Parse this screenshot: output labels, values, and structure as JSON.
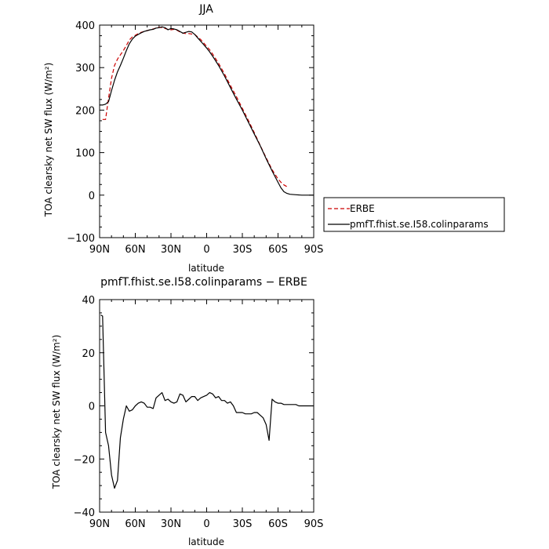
{
  "chart_data": [
    {
      "type": "line",
      "title": "JJA",
      "xlabel": "latitude",
      "ylabel": "TOA clearsky net SW flux (W/m²)",
      "xlim": [
        90,
        -90
      ],
      "ylim": [
        -100,
        400
      ],
      "x_tick_values": [
        90,
        60,
        30,
        0,
        -30,
        -60,
        -90
      ],
      "x_tick_labels": [
        "90N",
        "60N",
        "30N",
        "0",
        "30S",
        "60S",
        "90S"
      ],
      "y_tick_values": [
        -100,
        0,
        100,
        200,
        300,
        400
      ],
      "y_tick_labels": [
        "−100",
        "0",
        "100",
        "200",
        "300",
        "400"
      ],
      "legend_position": "right",
      "series": [
        {
          "name": "ERBE",
          "color": "#cc0000",
          "style": "dashed",
          "x": [
            87.5,
            85,
            82.5,
            80,
            77.5,
            75,
            72.5,
            70,
            67.5,
            65,
            62.5,
            60,
            57.5,
            55,
            52.5,
            50,
            47.5,
            45,
            42.5,
            40,
            37.5,
            35,
            32.5,
            30,
            27.5,
            25,
            22.5,
            20,
            17.5,
            15,
            12.5,
            10,
            7.5,
            5,
            2.5,
            0,
            -2.5,
            -5,
            -10,
            -15,
            -20,
            -25,
            -30,
            -35,
            -40,
            -45,
            -50,
            -55,
            -60,
            -62.5,
            -65,
            -67.5
          ],
          "y": [
            178,
            178,
            228,
            275,
            305,
            320,
            330,
            340,
            352,
            365,
            372,
            376,
            380,
            383,
            385,
            387,
            389,
            391,
            393,
            395,
            394,
            392,
            390,
            389,
            390,
            388,
            384,
            381,
            380,
            380,
            379,
            378,
            372,
            366,
            358,
            350,
            342,
            332,
            310,
            285,
            258,
            232,
            204,
            176,
            147,
            117,
            88,
            60,
            38,
            30,
            24,
            20
          ]
        },
        {
          "name": "pmfT.fhist.se.I58.colinparams",
          "color": "#000000",
          "style": "solid",
          "x": [
            90,
            87.5,
            85,
            82.5,
            80,
            77.5,
            75,
            72.5,
            70,
            67.5,
            65,
            62.5,
            60,
            57.5,
            55,
            52.5,
            50,
            47.5,
            45,
            42.5,
            40,
            37.5,
            35,
            32.5,
            30,
            27.5,
            25,
            22.5,
            20,
            17.5,
            15,
            12.5,
            10,
            7.5,
            5,
            2.5,
            0,
            -2.5,
            -5,
            -10,
            -15,
            -20,
            -25,
            -30,
            -35,
            -40,
            -45,
            -50,
            -55,
            -60,
            -62.5,
            -65,
            -67.5,
            -70,
            -75,
            -80,
            -85,
            -90
          ],
          "y": [
            212,
            212,
            214,
            220,
            246,
            270,
            290,
            305,
            322,
            340,
            356,
            367,
            374,
            378,
            382,
            385,
            387,
            389,
            390,
            393,
            394,
            396,
            394,
            389,
            392,
            391,
            389,
            385,
            381,
            383,
            385,
            384,
            378,
            370,
            362,
            354,
            346,
            337,
            327,
            305,
            280,
            253,
            226,
            200,
            172,
            144,
            116,
            86,
            57,
            30,
            17,
            8,
            4,
            2,
            1,
            0,
            0,
            0
          ]
        }
      ]
    },
    {
      "type": "line",
      "title": "pmfT.fhist.se.I58.colinparams − ERBE",
      "xlabel": "latitude",
      "ylabel": "TOA clearsky net SW flux (W/m²)",
      "xlim": [
        90,
        -90
      ],
      "ylim": [
        -40,
        40
      ],
      "x_tick_values": [
        90,
        60,
        30,
        0,
        -30,
        -60,
        -90
      ],
      "x_tick_labels": [
        "90N",
        "60N",
        "30N",
        "0",
        "30S",
        "60S",
        "90S"
      ],
      "y_tick_values": [
        -40,
        -20,
        0,
        20,
        40
      ],
      "y_tick_labels": [
        "−40",
        "−20",
        "0",
        "20",
        "40"
      ],
      "series": [
        {
          "name": "pmfT.fhist.se.I58.colinparams − ERBE",
          "color": "#000000",
          "style": "solid",
          "x": [
            89,
            87.5,
            85,
            82.5,
            80,
            77.5,
            75,
            72.5,
            70,
            67.5,
            65,
            62.5,
            60,
            57.5,
            55,
            52.5,
            50,
            47.5,
            45,
            42.5,
            40,
            37.5,
            35,
            32.5,
            30,
            27.5,
            25,
            22.5,
            20,
            17.5,
            15,
            12.5,
            10,
            7.5,
            5,
            2.5,
            0,
            -2.5,
            -5,
            -7.5,
            -10,
            -12.5,
            -15,
            -17.5,
            -20,
            -22.5,
            -25,
            -27.5,
            -30,
            -32.5,
            -35,
            -37.5,
            -40,
            -42.5,
            -45,
            -47.5,
            -50,
            -52.5,
            -55,
            -57.5,
            -60,
            -62.5,
            -65,
            -67.5,
            -70,
            -72.5,
            -75,
            -77.5,
            -80,
            -82.5,
            -85,
            -87.5,
            -90
          ],
          "y": [
            34.2,
            33.8,
            -10,
            -15,
            -26,
            -31,
            -28,
            -12,
            -5,
            0,
            -2,
            -1.5,
            0,
            1,
            1.5,
            1,
            -0.5,
            -0.5,
            -1,
            3,
            4,
            5,
            2,
            2.5,
            1.5,
            1,
            1.5,
            4.5,
            4,
            1.5,
            2.5,
            3.5,
            3.5,
            2,
            3,
            3.5,
            4,
            5,
            4.5,
            3,
            3.5,
            2,
            2,
            1,
            1.5,
            0,
            -2.5,
            -2.5,
            -2.5,
            -3,
            -3,
            -3,
            -2.5,
            -2.5,
            -3.5,
            -4.5,
            -7,
            -13,
            2.5,
            1.5,
            1,
            1,
            0.5,
            0.5,
            0.5,
            0.5,
            0.5,
            0,
            0,
            0,
            0,
            0,
            0
          ]
        }
      ]
    }
  ]
}
